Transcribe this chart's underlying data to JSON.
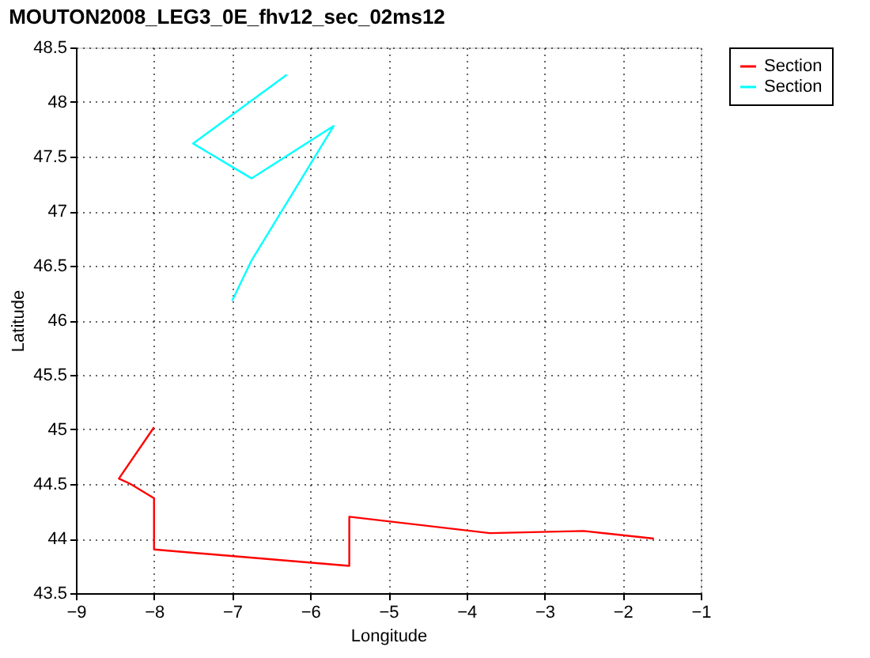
{
  "chart_data": {
    "type": "line",
    "title": "MOUTON2008_LEG3_0E_fhv12_sec_02ms12",
    "xlabel": "Longitude",
    "ylabel": "Latitude",
    "xlim": [
      -9,
      -1
    ],
    "xticks": [
      -9,
      -8,
      -7,
      -6,
      -5,
      -4,
      -3,
      -2,
      -1
    ],
    "ylim": [
      43.5,
      48.5
    ],
    "yticks": [
      43.5,
      44,
      44.5,
      45,
      45.5,
      46,
      46.5,
      47,
      47.5,
      48,
      48.5
    ],
    "grid": true,
    "legend": "top right",
    "line_style": "solid",
    "marker": "none",
    "series": [
      {
        "name": "Section",
        "color": "#ff0000",
        "x": [
          -8.0,
          -8.45,
          -8.3,
          -8.0,
          -8.0,
          -5.5,
          -5.5,
          -3.7,
          -2.5,
          -1.6
        ],
        "values": [
          45.02,
          44.55,
          44.5,
          44.37,
          43.9,
          43.75,
          44.2,
          44.05,
          44.07,
          44.0
        ]
      },
      {
        "name": "Section",
        "color": "#00ffff",
        "x": [
          -7.0,
          -6.75,
          -5.7,
          -6.75,
          -7.5,
          -6.3
        ],
        "values": [
          46.18,
          46.55,
          47.78,
          47.3,
          47.62,
          48.25
        ]
      }
    ]
  }
}
